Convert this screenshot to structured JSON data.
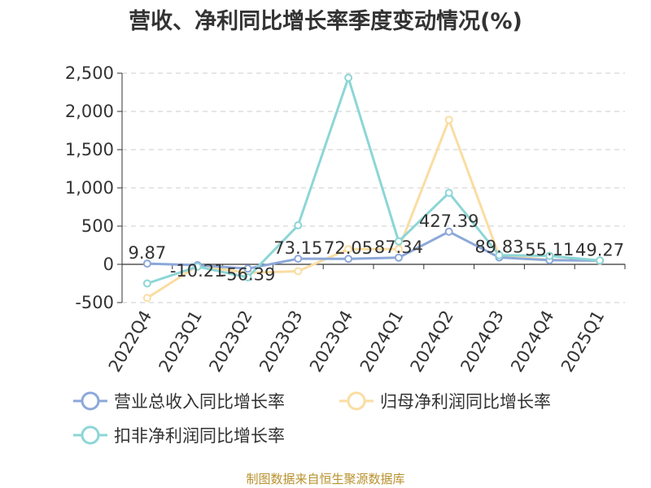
{
  "title": "营收、净利同比增长率季度变动情况(%)",
  "source_note": "制图数据来自恒生聚源数据库",
  "colors": {
    "revenue": "#8ca8d9",
    "net_profit": "#fadda2",
    "deducted_net_profit": "#8dd6d6",
    "grid": "#cccccc",
    "axis_text": "#333333"
  },
  "legend": [
    {
      "label": "营业总收入同比增长率",
      "color_key": "revenue"
    },
    {
      "label": "归母净利润同比增长率",
      "color_key": "net_profit"
    },
    {
      "label": "扣非净利润同比增长率",
      "color_key": "deducted_net_profit"
    }
  ],
  "chart_data": {
    "type": "line",
    "title": "营收、净利同比增长率季度变动情况(%)",
    "xlabel": "",
    "ylabel": "",
    "categories": [
      "2022Q4",
      "2023Q1",
      "2023Q2",
      "2023Q3",
      "2023Q4",
      "2024Q1",
      "2024Q2",
      "2024Q3",
      "2024Q4",
      "2025Q1"
    ],
    "ylim": [
      -500,
      2500
    ],
    "yticks": [
      -500,
      0,
      500,
      1000,
      1500,
      2000,
      2500
    ],
    "ytick_labels": [
      "-500",
      "0",
      "500",
      "1,000",
      "1,500",
      "2,000",
      "2,500"
    ],
    "grid": true,
    "legend_position": "bottom",
    "series": [
      {
        "name": "营业总收入同比增长率",
        "values": [
          9.87,
          -10.21,
          -56.39,
          73.15,
          72.05,
          87.34,
          427.39,
          89.83,
          55.11,
          49.27
        ],
        "labels": [
          "9.87",
          "-10.21",
          "-56.39",
          "73.15",
          "72.05",
          "87.34",
          "427.39",
          "89.83",
          "55.11",
          "49.27"
        ]
      },
      {
        "name": "归母净利润同比增长率",
        "values": [
          -440,
          -20,
          -110,
          -90,
          200,
          200,
          1890,
          110,
          60,
          45
        ]
      },
      {
        "name": "扣非净利润同比增长率",
        "values": [
          -250,
          -30,
          -170,
          510,
          2440,
          300,
          935,
          120,
          110,
          50
        ]
      }
    ]
  }
}
